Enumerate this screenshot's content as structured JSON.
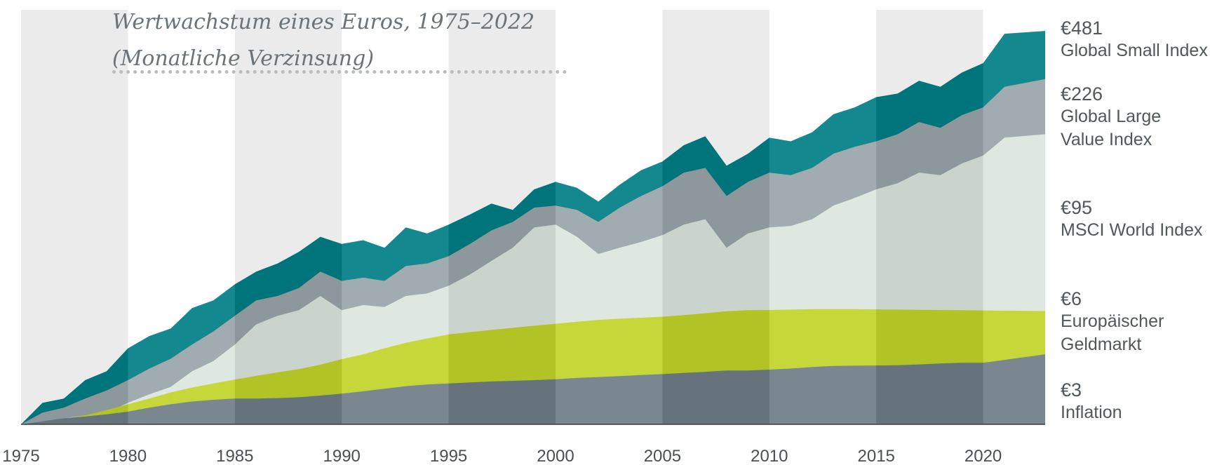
{
  "chart_data": {
    "type": "area",
    "title": "Wertwachstum eines Euros, 1975–2022",
    "subtitle": "(Monatliche Verzinsung)",
    "xlabel": "",
    "ylabel": "",
    "xlim": [
      1975,
      2022.9
    ],
    "x_ticks": [
      1975,
      1980,
      1985,
      1990,
      1995,
      2000,
      2005,
      2010,
      2015,
      2020
    ],
    "y_scale": "log",
    "ylim": [
      1,
      600
    ],
    "grid": false,
    "legend": "right",
    "x": [
      1975,
      1976,
      1977,
      1978,
      1979,
      1980,
      1981,
      1982,
      1983,
      1984,
      1985,
      1986,
      1987,
      1988,
      1989,
      1990,
      1991,
      1992,
      1993,
      1994,
      1995,
      1996,
      1997,
      1998,
      1999,
      2000,
      2001,
      2002,
      2003,
      2004,
      2005,
      2006,
      2007,
      2008,
      2009,
      2010,
      2011,
      2012,
      2013,
      2014,
      2015,
      2016,
      2017,
      2018,
      2019,
      2020,
      2021,
      2022.9
    ],
    "series": [
      {
        "name": "Global Small Index",
        "final_label": "€481",
        "color": "#007e86",
        "values": [
          1.0,
          1.4,
          1.5,
          2.0,
          2.3,
          3.3,
          4.0,
          4.5,
          6.2,
          7.0,
          9.0,
          11.0,
          12.5,
          15.0,
          19.0,
          17.0,
          18.0,
          16.0,
          22.0,
          20.0,
          23.0,
          27.0,
          32.0,
          29.0,
          40.0,
          45.0,
          41.0,
          33.0,
          43.0,
          54.0,
          62.0,
          80.0,
          92.0,
          58.0,
          70.0,
          90.0,
          85.0,
          98.0,
          130.0,
          145.0,
          170.0,
          180.0,
          220.0,
          200.0,
          250.0,
          290.0,
          460.0,
          481.0
        ]
      },
      {
        "name": "Global Large\nValue Index",
        "final_label": "€226",
        "color": "#9aa5ab",
        "values": [
          1.0,
          1.2,
          1.3,
          1.5,
          1.7,
          2.0,
          2.4,
          2.8,
          3.5,
          4.3,
          5.5,
          7.0,
          7.5,
          8.5,
          11.0,
          9.5,
          10.0,
          9.5,
          12.0,
          12.5,
          14.0,
          17.0,
          21.0,
          24.0,
          30.0,
          31.0,
          29.0,
          24.0,
          30.0,
          36.0,
          42.0,
          52.0,
          56.0,
          36.0,
          45.0,
          52.0,
          50.0,
          56.0,
          70.0,
          78.0,
          85.0,
          95.0,
          115.0,
          105.0,
          128.0,
          145.0,
          200.0,
          226.0
        ]
      },
      {
        "name": "MSCI World Index",
        "final_label": "€95",
        "color": "#dce6de",
        "values": [
          1.0,
          1.05,
          1.1,
          1.15,
          1.2,
          1.4,
          1.6,
          1.8,
          2.3,
          2.7,
          3.5,
          4.8,
          5.5,
          6.0,
          7.5,
          6.0,
          6.5,
          6.3,
          7.5,
          7.8,
          8.8,
          10.5,
          13.0,
          16.0,
          22.0,
          23.0,
          19.0,
          14.5,
          16.0,
          17.5,
          19.5,
          23.0,
          25.0,
          16.0,
          20.0,
          22.0,
          22.5,
          25.0,
          31.0,
          35.0,
          40.0,
          44.0,
          52.0,
          50.0,
          60.0,
          68.0,
          90.0,
          95.0
        ]
      },
      {
        "name": "Europäischer\nGeldmarkt",
        "final_label": "€6",
        "color": "#c2d42a",
        "values": [
          1.0,
          1.04,
          1.09,
          1.15,
          1.25,
          1.37,
          1.5,
          1.65,
          1.78,
          1.9,
          2.02,
          2.14,
          2.26,
          2.38,
          2.55,
          2.78,
          3.0,
          3.3,
          3.6,
          3.85,
          4.1,
          4.25,
          4.4,
          4.55,
          4.7,
          4.85,
          5.0,
          5.15,
          5.25,
          5.33,
          5.42,
          5.55,
          5.72,
          5.9,
          6.0,
          6.02,
          6.06,
          6.1,
          6.1,
          6.1,
          6.08,
          6.06,
          6.04,
          6.02,
          6.0,
          5.98,
          5.95,
          5.92
        ]
      },
      {
        "name": "Inflation",
        "final_label": "€3",
        "color": "#6f7d87",
        "values": [
          1.0,
          1.05,
          1.1,
          1.13,
          1.17,
          1.22,
          1.3,
          1.37,
          1.43,
          1.47,
          1.5,
          1.5,
          1.51,
          1.53,
          1.57,
          1.62,
          1.68,
          1.75,
          1.82,
          1.87,
          1.9,
          1.93,
          1.96,
          1.98,
          2.0,
          2.03,
          2.07,
          2.1,
          2.13,
          2.17,
          2.2,
          2.24,
          2.28,
          2.33,
          2.33,
          2.36,
          2.4,
          2.46,
          2.5,
          2.51,
          2.52,
          2.53,
          2.56,
          2.6,
          2.63,
          2.63,
          2.75,
          3.0
        ]
      }
    ],
    "year_band_shades": [
      "#000000",
      "#ffffff",
      "#000000",
      "#ffffff",
      "#000000",
      "#ffffff",
      "#000000",
      "#ffffff",
      "#000000",
      "#ffffff"
    ]
  }
}
